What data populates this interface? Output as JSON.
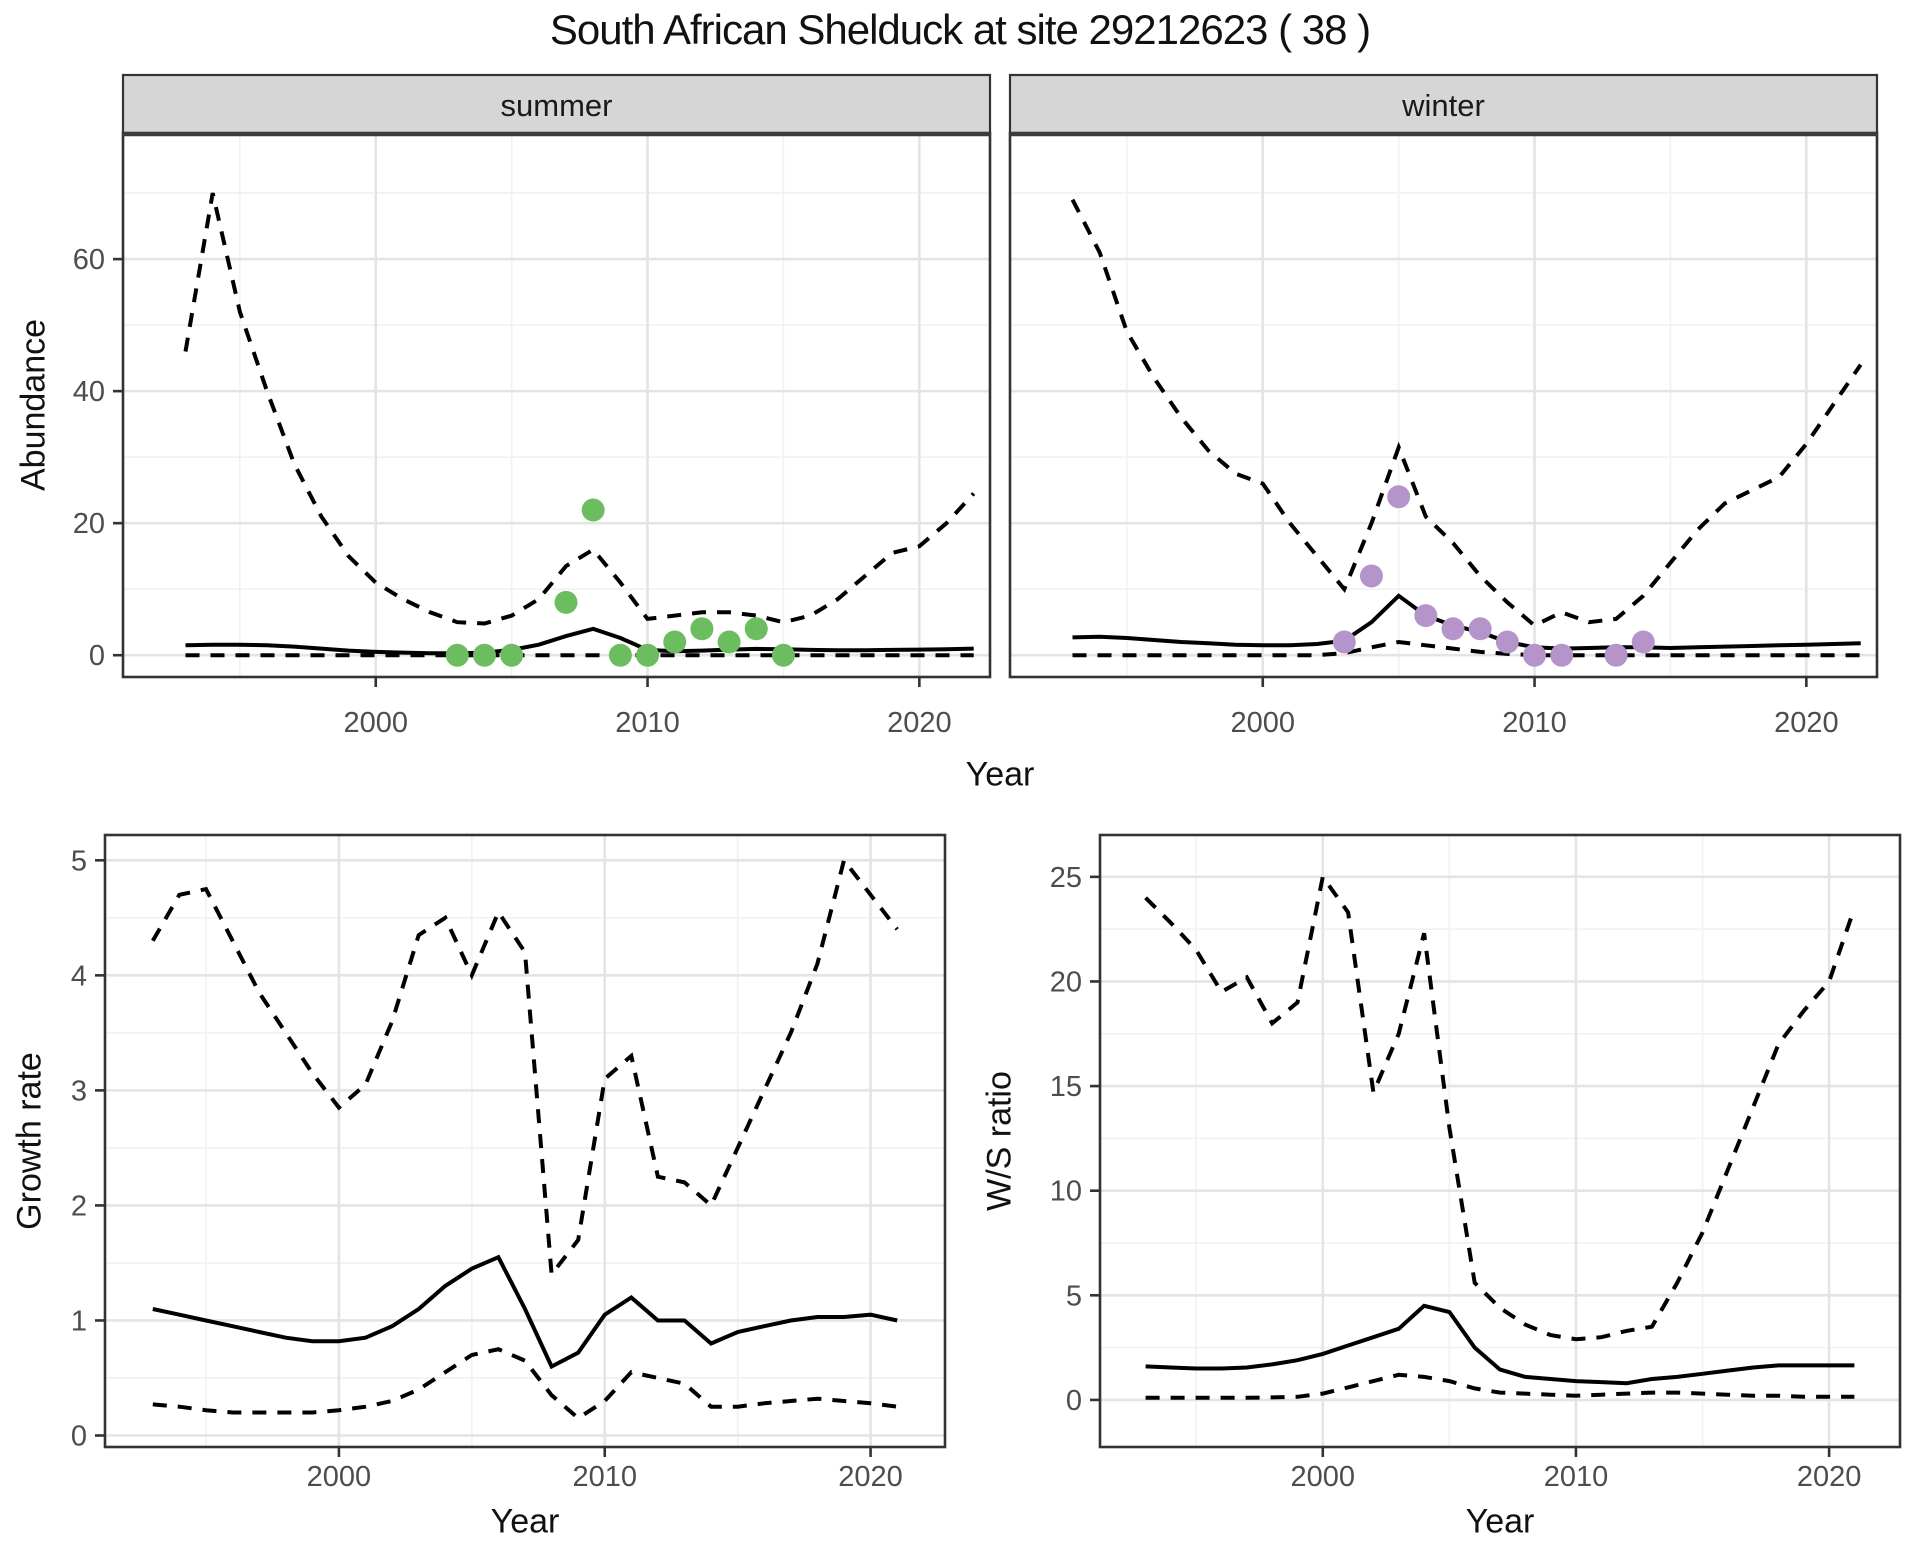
{
  "title": "South African Shelduck at site 29212623 ( 38 )",
  "labels": {
    "abundance_axis": "Abundance",
    "year_axis_top": "Year",
    "year_axis_bottom_left": "Year",
    "year_axis_bottom_right": "Year",
    "growth_axis": "Growth rate",
    "ws_axis": "W/S ratio",
    "facet_summer": "summer",
    "facet_winter": "winter"
  },
  "colors": {
    "summer_points": "#6CBD5F",
    "winter_points": "#B494C9",
    "line": "#000000",
    "grid_major": "#e4e4e4",
    "grid_minor": "#f1f1f1",
    "strip_fill": "#d6d6d6",
    "strip_border": "#3c3c3c",
    "panel_border": "#333333",
    "axis_text": "#4d4d4d"
  },
  "chart_data": [
    {
      "type": "line",
      "key": "summer",
      "strip_label": "summer",
      "ylabel": "Abundance",
      "xlabel": "Year",
      "x": [
        1993,
        1994,
        1995,
        1996,
        1997,
        1998,
        1999,
        2000,
        2001,
        2002,
        2003,
        2004,
        2005,
        2006,
        2007,
        2008,
        2009,
        2010,
        2011,
        2012,
        2013,
        2014,
        2015,
        2016,
        2017,
        2018,
        2019,
        2020,
        2021,
        2022
      ],
      "series": [
        {
          "name": "upper_ci",
          "style": "dashed",
          "values": [
            46,
            70,
            52,
            40,
            29,
            21,
            15,
            11,
            8.5,
            6.5,
            5,
            4.8,
            6,
            8.5,
            13.5,
            16,
            11,
            5.5,
            6,
            6.5,
            6.5,
            6,
            5,
            6,
            8.5,
            12,
            15.5,
            16.5,
            20,
            24.5
          ]
        },
        {
          "name": "median",
          "style": "solid",
          "values": [
            1.5,
            1.6,
            1.6,
            1.5,
            1.3,
            1.0,
            0.7,
            0.5,
            0.4,
            0.3,
            0.3,
            0.4,
            0.8,
            1.6,
            2.9,
            4.0,
            2.6,
            0.8,
            0.6,
            0.7,
            0.85,
            0.95,
            0.9,
            0.8,
            0.75,
            0.75,
            0.8,
            0.85,
            0.9,
            1.0
          ]
        },
        {
          "name": "lower_ci",
          "style": "dashed",
          "values": [
            0,
            0,
            0,
            0,
            0,
            0,
            0,
            0,
            0,
            0,
            0,
            0,
            0,
            0,
            0,
            0,
            0,
            0,
            0,
            0,
            0,
            0,
            0,
            0,
            0,
            0,
            0,
            0,
            0,
            0
          ]
        }
      ],
      "points": {
        "name": "observed_counts",
        "color_key": "summer_points",
        "data": [
          [
            2003,
            0
          ],
          [
            2004,
            0
          ],
          [
            2005,
            0
          ],
          [
            2007,
            8
          ],
          [
            2008,
            22
          ],
          [
            2009,
            0
          ],
          [
            2010,
            0
          ],
          [
            2011,
            2
          ],
          [
            2012,
            4
          ],
          [
            2013,
            2
          ],
          [
            2014,
            4
          ],
          [
            2015,
            0
          ]
        ]
      },
      "xlim": [
        1990.7,
        2022.6
      ],
      "ylim": [
        -3.3,
        79.1
      ],
      "xticks": {
        "major": [
          2000,
          2010,
          2020
        ],
        "minor": [
          1995,
          2005,
          2015
        ],
        "labels": [
          "2000",
          "2010",
          "2020"
        ]
      },
      "yticks": {
        "major": [
          0,
          20,
          40,
          60
        ],
        "minor": [
          10,
          30,
          50,
          70
        ],
        "labels": [
          "0",
          "20",
          "40",
          "60"
        ]
      },
      "grid": true,
      "legend": "none"
    },
    {
      "type": "line",
      "key": "winter",
      "strip_label": "winter",
      "ylabel": "Abundance",
      "xlabel": "Year",
      "x": [
        1993,
        1994,
        1995,
        1996,
        1997,
        1998,
        1999,
        2000,
        2001,
        2002,
        2003,
        2004,
        2005,
        2006,
        2007,
        2008,
        2009,
        2010,
        2011,
        2012,
        2013,
        2014,
        2015,
        2016,
        2017,
        2018,
        2019,
        2020,
        2021,
        2022
      ],
      "series": [
        {
          "name": "upper_ci",
          "style": "dashed",
          "values": [
            69,
            61,
            49,
            42,
            36,
            31,
            27.5,
            26,
            20,
            15,
            10,
            20,
            31.5,
            21,
            17,
            12,
            8,
            4.5,
            6.5,
            5,
            5.5,
            9,
            14,
            19,
            23,
            25,
            27,
            32,
            38,
            44
          ]
        },
        {
          "name": "median",
          "style": "solid",
          "values": [
            2.7,
            2.8,
            2.6,
            2.3,
            2.0,
            1.8,
            1.6,
            1.5,
            1.5,
            1.7,
            2.2,
            5.0,
            9.0,
            6.0,
            4.5,
            3.5,
            2.0,
            1.2,
            1.0,
            1.1,
            1.2,
            1.2,
            1.1,
            1.2,
            1.3,
            1.4,
            1.5,
            1.6,
            1.7,
            1.8
          ]
        },
        {
          "name": "lower_ci",
          "style": "dashed",
          "values": [
            0,
            0,
            0,
            0,
            0,
            0,
            0,
            0,
            0,
            0,
            0.3,
            1.2,
            2.0,
            1.5,
            1.0,
            0.5,
            0.2,
            0,
            0,
            0,
            0,
            0,
            0,
            0,
            0,
            0,
            0,
            0,
            0,
            0
          ]
        }
      ],
      "points": {
        "name": "observed_counts",
        "color_key": "winter_points",
        "data": [
          [
            2003,
            2
          ],
          [
            2004,
            12
          ],
          [
            2005,
            24
          ],
          [
            2006,
            6
          ],
          [
            2007,
            4
          ],
          [
            2008,
            4
          ],
          [
            2009,
            2
          ],
          [
            2010,
            0
          ],
          [
            2011,
            0
          ],
          [
            2013,
            0
          ],
          [
            2014,
            2
          ]
        ]
      },
      "xlim": [
        1990.7,
        2022.6
      ],
      "ylim": [
        -3.3,
        79.1
      ],
      "xticks": {
        "major": [
          2000,
          2010,
          2020
        ],
        "minor": [
          1995,
          2005,
          2015
        ],
        "labels": [
          "2000",
          "2010",
          "2020"
        ]
      },
      "yticks": {
        "major": [
          0,
          20,
          40,
          60
        ],
        "minor": [
          10,
          30,
          50,
          70
        ],
        "labels": [
          "0",
          "20",
          "40",
          "60"
        ]
      },
      "grid": true,
      "legend": "none"
    },
    {
      "type": "line",
      "key": "growth",
      "strip_label": "",
      "ylabel": "Growth rate",
      "xlabel": "Year",
      "x": [
        1993,
        1994,
        1995,
        1996,
        1997,
        1998,
        1999,
        2000,
        2001,
        2002,
        2003,
        2004,
        2005,
        2006,
        2007,
        2008,
        2009,
        2010,
        2011,
        2012,
        2013,
        2014,
        2015,
        2016,
        2017,
        2018,
        2019,
        2020,
        2021
      ],
      "series": [
        {
          "name": "upper_ci",
          "style": "dashed",
          "values": [
            4.3,
            4.7,
            4.75,
            4.3,
            3.85,
            3.5,
            3.15,
            2.85,
            3.05,
            3.6,
            4.35,
            4.5,
            4.0,
            4.55,
            4.2,
            1.4,
            1.7,
            3.1,
            3.3,
            2.25,
            2.2,
            2.0,
            2.5,
            3.0,
            3.5,
            4.1,
            5.0,
            4.7,
            4.4
          ]
        },
        {
          "name": "median",
          "style": "solid",
          "values": [
            1.1,
            1.05,
            1.0,
            0.95,
            0.9,
            0.85,
            0.82,
            0.82,
            0.85,
            0.95,
            1.1,
            1.3,
            1.45,
            1.55,
            1.1,
            0.6,
            0.72,
            1.05,
            1.2,
            1.0,
            1.0,
            0.8,
            0.9,
            0.95,
            1.0,
            1.03,
            1.03,
            1.05,
            1.0
          ]
        },
        {
          "name": "lower_ci",
          "style": "dashed",
          "values": [
            0.27,
            0.25,
            0.22,
            0.2,
            0.2,
            0.2,
            0.2,
            0.22,
            0.25,
            0.3,
            0.4,
            0.55,
            0.7,
            0.75,
            0.65,
            0.35,
            0.15,
            0.3,
            0.55,
            0.5,
            0.45,
            0.25,
            0.25,
            0.28,
            0.3,
            0.32,
            0.3,
            0.28,
            0.25
          ]
        }
      ],
      "points": null,
      "xlim": [
        1991.2,
        2022.8
      ],
      "ylim": [
        -0.1,
        5.22
      ],
      "xticks": {
        "major": [
          2000,
          2010,
          2020
        ],
        "minor": [
          1995,
          2005,
          2015
        ],
        "labels": [
          "2000",
          "2010",
          "2020"
        ]
      },
      "yticks": {
        "major": [
          0,
          1,
          2,
          3,
          4,
          5
        ],
        "minor": [
          0.5,
          1.5,
          2.5,
          3.5,
          4.5
        ],
        "labels": [
          "0",
          "1",
          "2",
          "3",
          "4",
          "5"
        ]
      },
      "grid": true,
      "legend": "none"
    },
    {
      "type": "line",
      "key": "ws",
      "strip_label": "",
      "ylabel": "W/S ratio",
      "xlabel": "Year",
      "x": [
        1993,
        1994,
        1995,
        1996,
        1997,
        1998,
        1999,
        2000,
        2001,
        2002,
        2003,
        2004,
        2005,
        2006,
        2007,
        2008,
        2009,
        2010,
        2011,
        2012,
        2013,
        2014,
        2015,
        2016,
        2017,
        2018,
        2019,
        2020,
        2021
      ],
      "series": [
        {
          "name": "upper_ci",
          "style": "dashed",
          "values": [
            24,
            22.8,
            21.5,
            19.5,
            20.2,
            18,
            19,
            25,
            23.3,
            14.7,
            17.5,
            22.3,
            13,
            5.6,
            4.4,
            3.6,
            3.1,
            2.9,
            3.0,
            3.3,
            3.5,
            5.6,
            8,
            11,
            14,
            17,
            18.6,
            20,
            23.5
          ]
        },
        {
          "name": "median",
          "style": "solid",
          "values": [
            1.6,
            1.55,
            1.5,
            1.5,
            1.55,
            1.7,
            1.9,
            2.2,
            2.6,
            3.0,
            3.4,
            4.5,
            4.2,
            2.5,
            1.45,
            1.1,
            1.0,
            0.9,
            0.85,
            0.8,
            1.0,
            1.1,
            1.25,
            1.4,
            1.55,
            1.65,
            1.65,
            1.65,
            1.65
          ]
        },
        {
          "name": "lower_ci",
          "style": "dashed",
          "values": [
            0.1,
            0.1,
            0.1,
            0.1,
            0.1,
            0.12,
            0.15,
            0.3,
            0.6,
            0.9,
            1.2,
            1.1,
            0.9,
            0.55,
            0.35,
            0.3,
            0.25,
            0.2,
            0.25,
            0.3,
            0.35,
            0.35,
            0.3,
            0.25,
            0.2,
            0.2,
            0.15,
            0.15,
            0.15
          ]
        }
      ],
      "points": null,
      "xlim": [
        1991.2,
        2022.8
      ],
      "ylim": [
        -2.25,
        27.0
      ],
      "xticks": {
        "major": [
          2000,
          2010,
          2020
        ],
        "minor": [
          1995,
          2005,
          2015
        ],
        "labels": [
          "2000",
          "2010",
          "2020"
        ]
      },
      "yticks": {
        "major": [
          0,
          5,
          10,
          15,
          20,
          25
        ],
        "minor": [
          2.5,
          7.5,
          12.5,
          17.5,
          22.5
        ],
        "labels": [
          "0",
          "5",
          "10",
          "15",
          "20",
          "25"
        ]
      },
      "grid": true,
      "legend": "none"
    }
  ]
}
